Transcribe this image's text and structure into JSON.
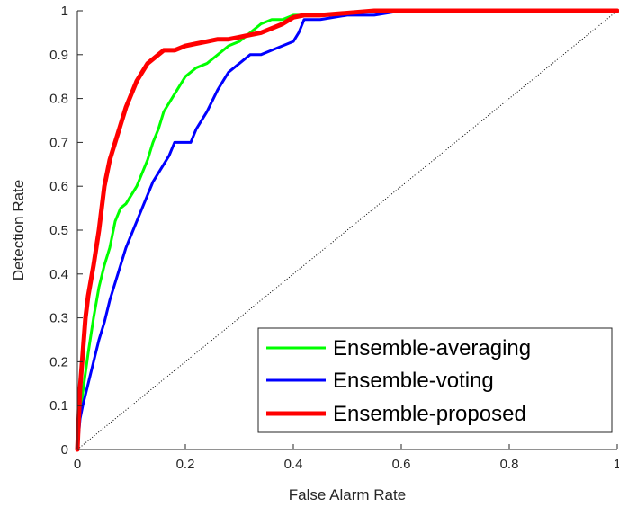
{
  "chart_data": {
    "type": "line",
    "xlabel": "False Alarm Rate",
    "ylabel": "Detection Rate",
    "xlim": [
      0,
      1
    ],
    "ylim": [
      0,
      1
    ],
    "x_ticks": [
      "0",
      "0.2",
      "0.4",
      "0.6",
      "0.8",
      "1"
    ],
    "y_ticks": [
      "0",
      "0.1",
      "0.2",
      "0.3",
      "0.4",
      "0.5",
      "0.6",
      "0.7",
      "0.8",
      "0.9",
      "1"
    ],
    "grid": false,
    "legend_position": "bottom-right",
    "reference_line": {
      "style": "dotted",
      "from": [
        0,
        0
      ],
      "to": [
        1,
        1
      ],
      "color": "#000000"
    },
    "series": [
      {
        "name": "Ensemble-averaging",
        "color": "#00ff00",
        "x": [
          0,
          0.005,
          0.01,
          0.02,
          0.03,
          0.04,
          0.05,
          0.06,
          0.07,
          0.08,
          0.09,
          0.1,
          0.11,
          0.12,
          0.13,
          0.14,
          0.15,
          0.16,
          0.18,
          0.2,
          0.22,
          0.24,
          0.26,
          0.28,
          0.3,
          0.32,
          0.34,
          0.36,
          0.38,
          0.4,
          0.45,
          0.5,
          0.55,
          0.6,
          0.7,
          0.8,
          0.9,
          1
        ],
        "y": [
          0,
          0.08,
          0.13,
          0.22,
          0.3,
          0.37,
          0.42,
          0.46,
          0.52,
          0.55,
          0.56,
          0.58,
          0.6,
          0.63,
          0.66,
          0.7,
          0.73,
          0.77,
          0.81,
          0.85,
          0.87,
          0.88,
          0.9,
          0.92,
          0.93,
          0.95,
          0.97,
          0.98,
          0.98,
          0.99,
          0.99,
          0.995,
          1,
          1,
          1,
          1,
          1,
          1
        ]
      },
      {
        "name": "Ensemble-voting",
        "color": "#0000ff",
        "x": [
          0,
          0.005,
          0.01,
          0.02,
          0.03,
          0.04,
          0.05,
          0.06,
          0.07,
          0.08,
          0.09,
          0.1,
          0.11,
          0.12,
          0.13,
          0.14,
          0.15,
          0.16,
          0.17,
          0.18,
          0.2,
          0.21,
          0.22,
          0.24,
          0.26,
          0.28,
          0.3,
          0.32,
          0.34,
          0.36,
          0.38,
          0.4,
          0.41,
          0.42,
          0.45,
          0.5,
          0.55,
          0.6,
          0.7,
          0.8,
          0.9,
          1
        ],
        "y": [
          0,
          0.07,
          0.1,
          0.15,
          0.2,
          0.25,
          0.29,
          0.34,
          0.38,
          0.42,
          0.46,
          0.49,
          0.52,
          0.55,
          0.58,
          0.61,
          0.63,
          0.65,
          0.67,
          0.7,
          0.7,
          0.7,
          0.73,
          0.77,
          0.82,
          0.86,
          0.88,
          0.9,
          0.9,
          0.91,
          0.92,
          0.93,
          0.95,
          0.98,
          0.98,
          0.99,
          0.99,
          1,
          1,
          1,
          1,
          1
        ]
      },
      {
        "name": "Ensemble-proposed",
        "color": "#ff0000",
        "x": [
          0,
          0.005,
          0.01,
          0.015,
          0.02,
          0.03,
          0.04,
          0.05,
          0.06,
          0.07,
          0.08,
          0.09,
          0.1,
          0.11,
          0.12,
          0.13,
          0.14,
          0.15,
          0.16,
          0.18,
          0.2,
          0.22,
          0.24,
          0.26,
          0.28,
          0.3,
          0.32,
          0.34,
          0.36,
          0.38,
          0.4,
          0.42,
          0.45,
          0.5,
          0.55,
          0.6,
          0.7,
          0.8,
          0.9,
          1
        ],
        "y": [
          0,
          0.14,
          0.22,
          0.3,
          0.35,
          0.42,
          0.5,
          0.6,
          0.66,
          0.7,
          0.74,
          0.78,
          0.81,
          0.84,
          0.86,
          0.88,
          0.89,
          0.9,
          0.91,
          0.91,
          0.92,
          0.925,
          0.93,
          0.935,
          0.935,
          0.94,
          0.945,
          0.95,
          0.96,
          0.97,
          0.985,
          0.99,
          0.99,
          0.995,
          1,
          1,
          1,
          1,
          1,
          1
        ]
      }
    ]
  }
}
